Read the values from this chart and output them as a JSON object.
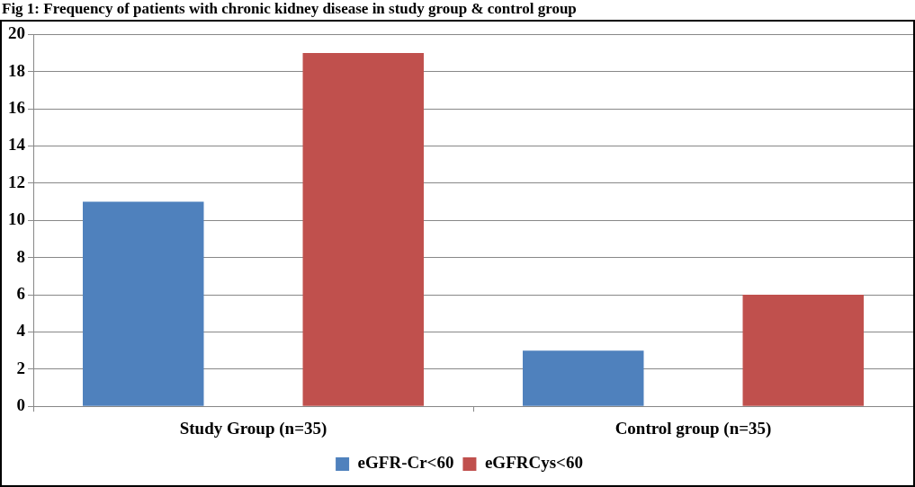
{
  "chart_data": {
    "type": "bar",
    "title": "Fig 1: Frequency of patients with chronic kidney disease in study group & control group",
    "categories": [
      "Study Group (n=35)",
      "Control group (n=35)"
    ],
    "series": [
      {
        "name": "eGFR-Cr<60",
        "color": "#4f81bd",
        "values": [
          11,
          3
        ]
      },
      {
        "name": "eGFRCys<60",
        "color": "#c0504d",
        "values": [
          19,
          6
        ]
      }
    ],
    "ylim": [
      0,
      20
    ],
    "yticks": [
      0,
      2,
      4,
      6,
      8,
      10,
      12,
      14,
      16,
      18,
      20
    ],
    "grid": "y",
    "legend": "bottom"
  }
}
